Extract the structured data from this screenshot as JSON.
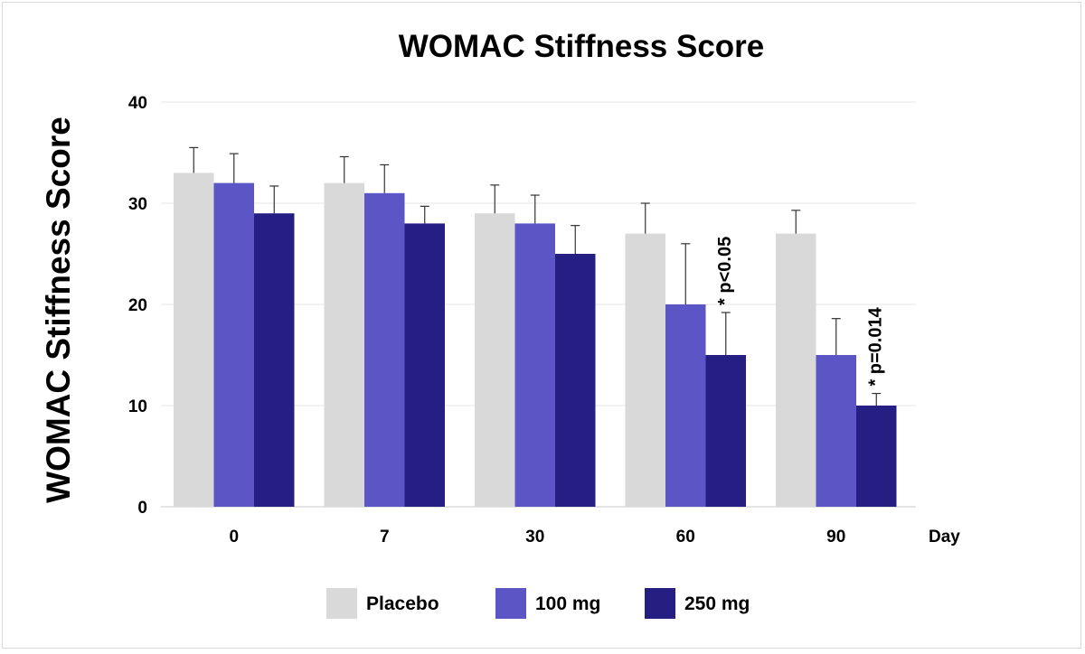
{
  "chart_data": {
    "type": "bar",
    "title": "WOMAC Stiffness Score",
    "xlabel": "Day",
    "ylabel": "WOMAC Stiffness Score",
    "ylim": [
      0,
      40
    ],
    "yticks": [
      0,
      10,
      20,
      30,
      40
    ],
    "grid": true,
    "categories": [
      "0",
      "7",
      "30",
      "60",
      "90"
    ],
    "series": [
      {
        "name": "Placebo",
        "color": "#d9d9d9",
        "values": [
          33,
          32,
          29,
          27,
          27
        ],
        "errors": [
          2.5,
          2.6,
          2.8,
          3.0,
          2.3
        ]
      },
      {
        "name": "100 mg",
        "color": "#5b55c6",
        "values": [
          32,
          31,
          28,
          20,
          15
        ],
        "errors": [
          2.9,
          2.8,
          2.8,
          6.0,
          3.6
        ]
      },
      {
        "name": "250 mg",
        "color": "#251f83",
        "values": [
          29,
          28,
          25,
          15,
          10
        ],
        "errors": [
          2.7,
          1.7,
          2.8,
          4.2,
          1.2
        ]
      }
    ],
    "annotations": [
      {
        "category": "60",
        "series": "250 mg",
        "text": "* p<0.05"
      },
      {
        "category": "90",
        "series": "250 mg",
        "text": "* p=0.014"
      }
    ],
    "legend_position": "bottom-center"
  }
}
